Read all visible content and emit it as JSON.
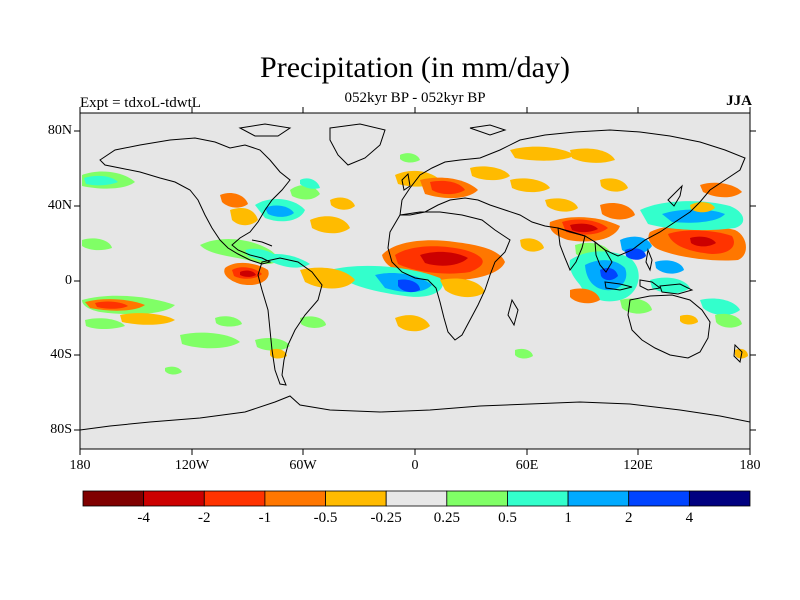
{
  "title": "Precipitation (in mm/day)",
  "subtitle": "052kyr BP - 052kyr BP",
  "experiment_label": "Expt = tdxoL-tdwtL",
  "season": "JJA",
  "y_axis_labels": [
    "80N",
    "40N",
    "0",
    "40S",
    "80S"
  ],
  "x_axis_labels": [
    "180",
    "120W",
    "60W",
    "0",
    "60E",
    "120E",
    "180"
  ],
  "colorbar": {
    "colors": [
      "#800000",
      "#cc0000",
      "#ff3300",
      "#ff7700",
      "#ffbb00",
      "#e8e8e8",
      "#80ff66",
      "#33ffcc",
      "#00aaff",
      "#0044ff",
      "#000080"
    ],
    "labels": [
      "-4",
      "-2",
      "-1",
      "-0.5",
      "-0.25",
      "0.25",
      "0.5",
      "1",
      "2",
      "4"
    ]
  },
  "colors": {
    "ocean_background": "#e6e6e6",
    "coastline": "#000000"
  }
}
